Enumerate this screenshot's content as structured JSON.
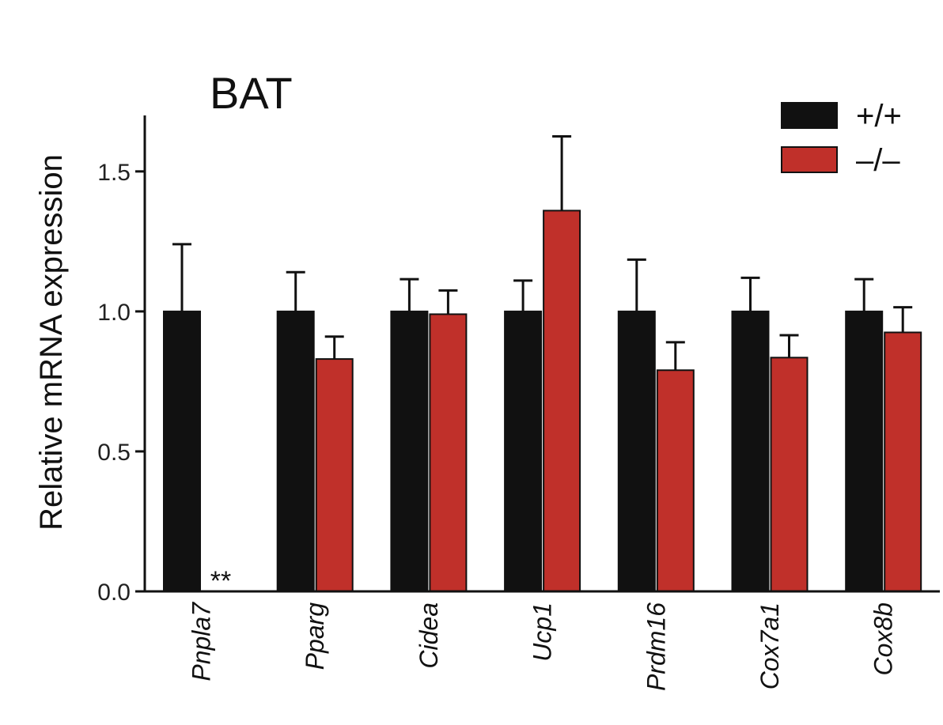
{
  "chart_data": {
    "type": "bar",
    "title": "BAT",
    "ylabel": "Relative mRNA expression",
    "xlabel": "",
    "ylim": [
      0,
      1.7
    ],
    "yticks": [
      "0.0",
      "0.5",
      "1.0",
      "1.5"
    ],
    "ytick_values": [
      0,
      0.5,
      1.0,
      1.5
    ],
    "grid": false,
    "legend_position": "top-right",
    "categories": [
      "Pnpla7",
      "Pparg",
      "Cidea",
      "Ucp1",
      "Prdm16",
      "Cox7a1",
      "Cox8b"
    ],
    "series": [
      {
        "name": "+/+",
        "color": "#111111",
        "values": [
          1.0,
          1.0,
          1.0,
          1.0,
          1.0,
          1.0,
          1.0
        ],
        "errors": [
          0.24,
          0.14,
          0.115,
          0.11,
          0.185,
          0.12,
          0.115
        ]
      },
      {
        "name": "–/–",
        "color": "#c0302a",
        "values": [
          0.0,
          0.83,
          0.99,
          1.36,
          0.79,
          0.835,
          0.925
        ],
        "errors": [
          0.0,
          0.08,
          0.085,
          0.265,
          0.1,
          0.08,
          0.09
        ]
      }
    ],
    "annotations": [
      {
        "category": "Pnpla7",
        "series": "–/–",
        "text": "**"
      }
    ]
  }
}
